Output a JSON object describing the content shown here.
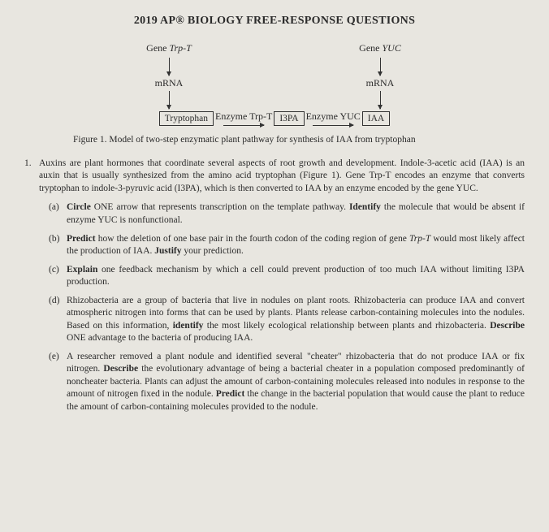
{
  "title": "2019 AP® BIOLOGY FREE-RESPONSE QUESTIONS",
  "diagram": {
    "geneLeft": "Gene ",
    "geneLeftItalic": "Trp-T",
    "geneRight": "Gene ",
    "geneRightItalic": "YUC",
    "mrna": "mRNA",
    "enzymeLeft": "Enzyme Trp-T",
    "enzymeRight": "Enzyme YUC",
    "box1": "Tryptophan",
    "box2": "I3PA",
    "box3": "IAA"
  },
  "caption": "Figure 1. Model of two-step enzymatic plant pathway for synthesis of IAA from tryptophan",
  "questionNumber": "1.",
  "stem": "Auxins are plant hormones that coordinate several aspects of root growth and development. Indole-3-acetic acid (IAA) is an auxin that is usually synthesized from the amino acid tryptophan (Figure 1). Gene Trp-T encodes an enzyme that converts tryptophan to indole-3-pyruvic acid (I3PA), which is then converted to IAA by an enzyme encoded by the gene YUC.",
  "parts": {
    "a": {
      "label": "(a)",
      "html": "<span class='bold'>Circle</span> ONE arrow that represents transcription on the template pathway. <span class='bold'>Identify</span> the molecule that would be absent if enzyme YUC is nonfunctional."
    },
    "b": {
      "label": "(b)",
      "html": "<span class='bold'>Predict</span> how the deletion of one base pair in the fourth codon of the coding region of gene <span class='italic'>Trp-T</span> would most likely affect the production of IAA. <span class='bold'>Justify</span> your prediction."
    },
    "c": {
      "label": "(c)",
      "html": "<span class='bold'>Explain</span> one feedback mechanism by which a cell could prevent production of too much IAA without limiting I3PA production."
    },
    "d": {
      "label": "(d)",
      "html": "Rhizobacteria are a group of bacteria that live in nodules on plant roots. Rhizobacteria can produce IAA and convert atmospheric nitrogen into forms that can be used by plants. Plants release carbon-containing molecules into the nodules. Based on this information, <span class='bold'>identify</span> the most likely ecological relationship between plants and rhizobacteria. <span class='bold'>Describe</span> ONE advantage to the bacteria of producing IAA."
    },
    "e": {
      "label": "(e)",
      "html": "A researcher removed a plant nodule and identified several \"cheater\" rhizobacteria that do not produce IAA or fix nitrogen. <span class='bold'>Describe</span> the evolutionary advantage of being a bacterial cheater in a population composed predominantly of noncheater bacteria. Plants can adjust the amount of carbon-containing molecules released into nodules in response to the amount of nitrogen fixed in the nodule. <span class='bold'>Predict</span> the change in the bacterial population that would cause the plant to reduce the amount of carbon-containing molecules provided to the nodule."
    }
  }
}
